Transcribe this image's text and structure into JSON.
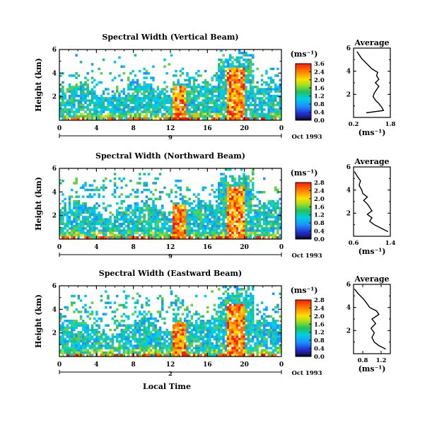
{
  "chart_data": [
    {
      "type": "heatmap",
      "title": "Spectral Width (Vertical Beam)",
      "ylabel": "Height (km)",
      "ylim": [
        0,
        6
      ],
      "xlim": [
        0,
        24
      ],
      "x_ticks": [
        "0",
        "4",
        "8",
        "12",
        "16",
        "20",
        "0"
      ],
      "y_ticks": [
        "2",
        "4",
        "6"
      ],
      "date_label": "Oct 1993",
      "day_label": "9",
      "colorbar_unit": "(ms⁻¹)",
      "colorbar_ticks": [
        "3.6",
        "2.4",
        "2.0",
        "1.6",
        "1.2",
        "0.8",
        "0.4",
        "0.0"
      ],
      "average": {
        "title": "Average",
        "xlim": [
          0.2,
          1.8
        ],
        "x_ticks": [
          "0.2",
          "1.8"
        ],
        "y_ticks": [
          "2",
          "4",
          "6"
        ],
        "xlabel": "(ms⁻¹)",
        "profile": [
          [
            0.75,
            0.4
          ],
          [
            1.5,
            0.6
          ],
          [
            1.42,
            0.9
          ],
          [
            1.3,
            1.2
          ],
          [
            1.15,
            1.5
          ],
          [
            1.05,
            1.8
          ],
          [
            1.1,
            2.1
          ],
          [
            1.2,
            2.4
          ],
          [
            1.3,
            2.7
          ],
          [
            1.15,
            3.0
          ],
          [
            1.3,
            3.3
          ],
          [
            1.2,
            3.6
          ],
          [
            1.25,
            3.9
          ],
          [
            1.0,
            4.2
          ],
          [
            0.85,
            4.5
          ],
          [
            0.7,
            4.8
          ],
          [
            0.55,
            5.1
          ],
          [
            0.45,
            5.4
          ],
          [
            0.35,
            5.7
          ]
        ]
      }
    },
    {
      "type": "heatmap",
      "title": "Spectral Width (Northward Beam)",
      "ylabel": "Height (km)",
      "ylim": [
        0,
        6
      ],
      "xlim": [
        0,
        24
      ],
      "x_ticks": [
        "0",
        "4",
        "8",
        "12",
        "16",
        "20",
        "0"
      ],
      "y_ticks": [
        "2",
        "4",
        "6"
      ],
      "date_label": "Oct 1993",
      "day_label": "9",
      "colorbar_unit": "(ms⁻¹)",
      "colorbar_ticks": [
        "2.8",
        "2.4",
        "2.0",
        "1.6",
        "1.2",
        "0.8",
        "0.4",
        "0.0"
      ],
      "average": {
        "title": "Average",
        "xlim": [
          0.6,
          1.4
        ],
        "x_ticks": [
          "0.6",
          "1.4"
        ],
        "y_ticks": [
          "2",
          "4",
          "6"
        ],
        "xlabel": "(ms⁻¹)",
        "profile": [
          [
            1.35,
            0.4
          ],
          [
            1.2,
            0.7
          ],
          [
            1.05,
            1.0
          ],
          [
            0.95,
            1.3
          ],
          [
            1.0,
            1.6
          ],
          [
            0.9,
            1.9
          ],
          [
            1.0,
            2.2
          ],
          [
            0.95,
            2.5
          ],
          [
            0.9,
            2.8
          ],
          [
            0.82,
            3.1
          ],
          [
            0.9,
            3.4
          ],
          [
            0.8,
            3.7
          ],
          [
            0.78,
            4.0
          ],
          [
            0.72,
            4.4
          ],
          [
            0.75,
            4.8
          ],
          [
            0.68,
            5.2
          ],
          [
            0.62,
            5.6
          ]
        ]
      }
    },
    {
      "type": "heatmap",
      "title": "Spectral Width (Eastward Beam)",
      "ylabel": "Height (km)",
      "ylim": [
        0,
        6
      ],
      "xlim": [
        0,
        24
      ],
      "x_ticks": [
        "0",
        "4",
        "8",
        "12",
        "16",
        "20",
        "0"
      ],
      "y_ticks": [
        "2",
        "4",
        "6"
      ],
      "date_label": "Oct 1993",
      "day_label": "2",
      "xlabel": "Local Time",
      "colorbar_unit": "(ms⁻¹)",
      "colorbar_ticks": [
        "2.8",
        "2.4",
        "2.0",
        "1.6",
        "1.2",
        "0.8",
        "0.4",
        "0.0"
      ],
      "average": {
        "title": "Average",
        "xlim": [
          0.6,
          1.4
        ],
        "x_ticks": [
          "0.8",
          "1.2"
        ],
        "y_ticks": [
          "2",
          "4",
          "6"
        ],
        "xlabel": "(ms⁻¹)",
        "profile": [
          [
            1.3,
            0.4
          ],
          [
            1.15,
            0.7
          ],
          [
            1.05,
            1.0
          ],
          [
            1.0,
            1.4
          ],
          [
            1.05,
            1.8
          ],
          [
            0.98,
            2.2
          ],
          [
            1.08,
            2.6
          ],
          [
            1.0,
            3.0
          ],
          [
            1.15,
            3.4
          ],
          [
            1.1,
            3.7
          ],
          [
            0.95,
            4.0
          ],
          [
            0.88,
            4.4
          ],
          [
            0.8,
            4.8
          ],
          [
            0.7,
            5.2
          ],
          [
            0.62,
            5.6
          ]
        ]
      }
    }
  ]
}
